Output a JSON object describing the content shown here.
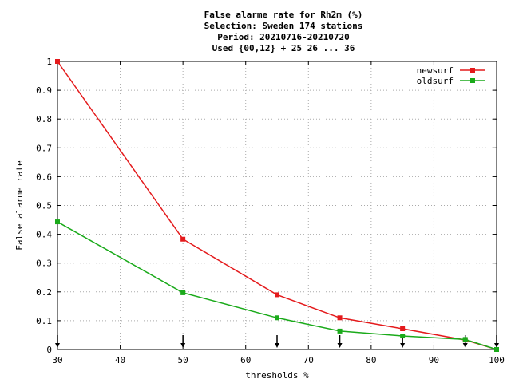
{
  "chart_data": {
    "type": "line",
    "title_lines": [
      "False alarme rate  for Rh2m (%)",
      "Selection: Sweden    174 stations",
      "Period: 20210716-20210720",
      "Used {00,12} + 25 26 ... 36"
    ],
    "xlabel": "thresholds %",
    "ylabel": "False alarme rate",
    "xlim": [
      30,
      100
    ],
    "ylim": [
      0,
      1
    ],
    "x_ticks": [
      30,
      40,
      50,
      60,
      70,
      80,
      90,
      100
    ],
    "y_ticks": [
      0,
      0.1,
      0.2,
      0.3,
      0.4,
      0.5,
      0.6,
      0.7,
      0.8,
      0.9,
      1
    ],
    "grid": true,
    "legend_position": "top-right",
    "threshold_markers": [
      30,
      50,
      65,
      75,
      85,
      95,
      100
    ],
    "series": [
      {
        "name": "newsurf",
        "color": "#e41a1c",
        "x": [
          30,
          50,
          65,
          75,
          85,
          95,
          100
        ],
        "values": [
          1.0,
          0.383,
          0.19,
          0.11,
          0.072,
          0.033,
          0.0
        ]
      },
      {
        "name": "oldsurf",
        "color": "#1aaa1a",
        "x": [
          30,
          50,
          65,
          75,
          85,
          95,
          100
        ],
        "values": [
          0.443,
          0.197,
          0.11,
          0.064,
          0.047,
          0.035,
          0.0
        ]
      }
    ]
  }
}
